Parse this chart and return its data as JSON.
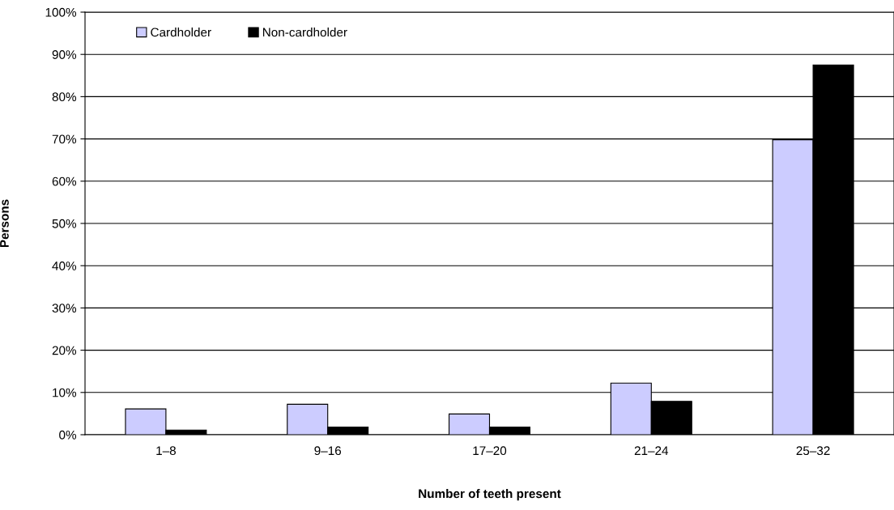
{
  "chart_data": {
    "type": "bar",
    "xlabel": "Number of teeth present",
    "ylabel": "Persons",
    "categories": [
      "1–8",
      "9–16",
      "17–20",
      "21–24",
      "25–32"
    ],
    "series": [
      {
        "name": "Cardholder",
        "color": "#ccccff",
        "values": [
          6.1,
          7.2,
          4.9,
          12.2,
          69.8
        ]
      },
      {
        "name": "Non-cardholder",
        "color": "#000000",
        "values": [
          1.1,
          1.8,
          1.8,
          7.9,
          87.5
        ]
      }
    ],
    "ylim": [
      0,
      100
    ],
    "yticks": [
      {
        "value": 0,
        "label": "0%"
      },
      {
        "value": 10,
        "label": "10%"
      },
      {
        "value": 20,
        "label": "20%"
      },
      {
        "value": 30,
        "label": "30%"
      },
      {
        "value": 40,
        "label": "40%"
      },
      {
        "value": 50,
        "label": "50%"
      },
      {
        "value": 60,
        "label": "60%"
      },
      {
        "value": 70,
        "label": "70%"
      },
      {
        "value": 80,
        "label": "80%"
      },
      {
        "value": 90,
        "label": "90%"
      },
      {
        "value": 100,
        "label": "100%"
      }
    ],
    "grid": "y",
    "legend": "top left"
  }
}
